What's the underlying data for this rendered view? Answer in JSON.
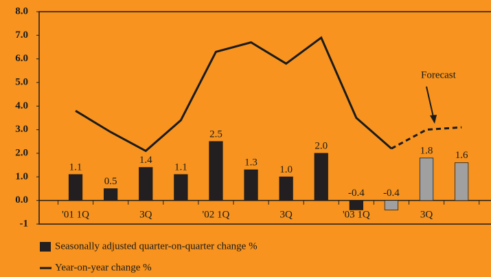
{
  "chart_data": {
    "type": "bar",
    "categories": [
      "'01 1Q",
      null,
      "3Q",
      null,
      "'02 1Q",
      null,
      "3Q",
      null,
      "'03 1Q",
      null,
      "3Q",
      null
    ],
    "series": [
      {
        "name": "Seasonally adjusted quarter-on-quarter change %",
        "type": "bar",
        "colors": [
          "#231f20",
          "#231f20",
          "#231f20",
          "#231f20",
          "#231f20",
          "#231f20",
          "#231f20",
          "#231f20",
          "#231f20",
          "#a0a0a0",
          "#a0a0a0",
          "#a0a0a0"
        ],
        "values": [
          1.1,
          0.5,
          1.4,
          1.1,
          2.5,
          1.3,
          1.0,
          2.0,
          -0.4,
          -0.4,
          1.8,
          1.6
        ],
        "value_labels": [
          "1.1",
          "0.5",
          "1.4",
          "1.1",
          "2.5",
          "1.3",
          "1.0",
          "2.0",
          "-0.4",
          "-0.4",
          "1.8",
          "1.6"
        ]
      },
      {
        "name": "Year-on-year change %",
        "type": "line",
        "color": "#1a1a1a",
        "values": [
          3.8,
          2.9,
          2.1,
          3.4,
          6.3,
          6.7,
          5.8,
          6.9,
          3.5,
          2.2,
          3.0,
          3.1
        ],
        "dashed_from": 9
      }
    ],
    "annotation": "Forecast",
    "ylim": [
      -1,
      8
    ],
    "yticks": [
      -1,
      {
        "value": 0,
        "label": "0.0"
      },
      {
        "value": 1,
        "label": "1.0"
      },
      {
        "value": 2,
        "label": "2.0"
      },
      {
        "value": 3,
        "label": "3.0"
      },
      {
        "value": 4,
        "label": "4.0"
      },
      {
        "value": 5,
        "label": "5.0"
      },
      {
        "value": 6,
        "label": "6.0"
      },
      {
        "value": 7,
        "label": "7.0"
      },
      {
        "value": 8,
        "label": "8.0"
      }
    ]
  }
}
